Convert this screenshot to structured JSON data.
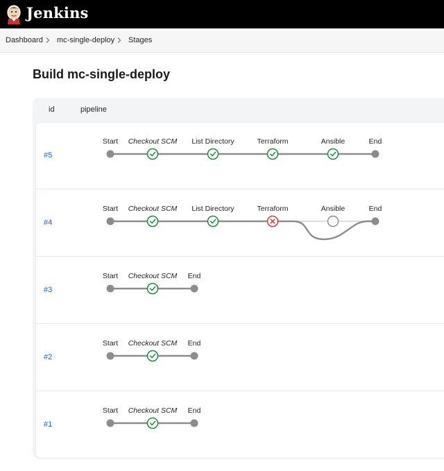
{
  "header": {
    "brand": "Jenkins"
  },
  "breadcrumbs": [
    "Dashboard",
    "mc-single-deploy",
    "Stages"
  ],
  "page_title": "Build mc-single-deploy",
  "table": {
    "columns": [
      "id",
      "pipeline"
    ]
  },
  "colors": {
    "success": "#1c8a3a",
    "failure": "#d23d3d",
    "edge": "#8c8c8c",
    "node": "#8c8c8c",
    "link": "#1c5ccd"
  },
  "runs": [
    {
      "id": "#5",
      "stages": [
        {
          "name": "Start",
          "status": "start",
          "italic": false
        },
        {
          "name": "Checkout SCM",
          "status": "success",
          "italic": true
        },
        {
          "name": "List Directory",
          "status": "success",
          "italic": false
        },
        {
          "name": "Terraform",
          "status": "success",
          "italic": false
        },
        {
          "name": "Ansible",
          "status": "success",
          "italic": false
        },
        {
          "name": "End",
          "status": "end",
          "italic": false
        }
      ]
    },
    {
      "id": "#4",
      "stages": [
        {
          "name": "Start",
          "status": "start",
          "italic": false
        },
        {
          "name": "Checkout SCM",
          "status": "success",
          "italic": true
        },
        {
          "name": "List Directory",
          "status": "success",
          "italic": false
        },
        {
          "name": "Terraform",
          "status": "failure",
          "italic": false
        },
        {
          "name": "Ansible",
          "status": "not-run",
          "italic": false
        },
        {
          "name": "End",
          "status": "end",
          "italic": false
        }
      ]
    },
    {
      "id": "#3",
      "stages": [
        {
          "name": "Start",
          "status": "start",
          "italic": false
        },
        {
          "name": "Checkout SCM",
          "status": "success",
          "italic": true
        },
        {
          "name": "End",
          "status": "end",
          "italic": false
        }
      ]
    },
    {
      "id": "#2",
      "stages": [
        {
          "name": "Start",
          "status": "start",
          "italic": false
        },
        {
          "name": "Checkout SCM",
          "status": "success",
          "italic": true
        },
        {
          "name": "End",
          "status": "end",
          "italic": false
        }
      ]
    },
    {
      "id": "#1",
      "stages": [
        {
          "name": "Start",
          "status": "start",
          "italic": false
        },
        {
          "name": "Checkout SCM",
          "status": "success",
          "italic": true
        },
        {
          "name": "End",
          "status": "end",
          "italic": false
        }
      ]
    }
  ]
}
